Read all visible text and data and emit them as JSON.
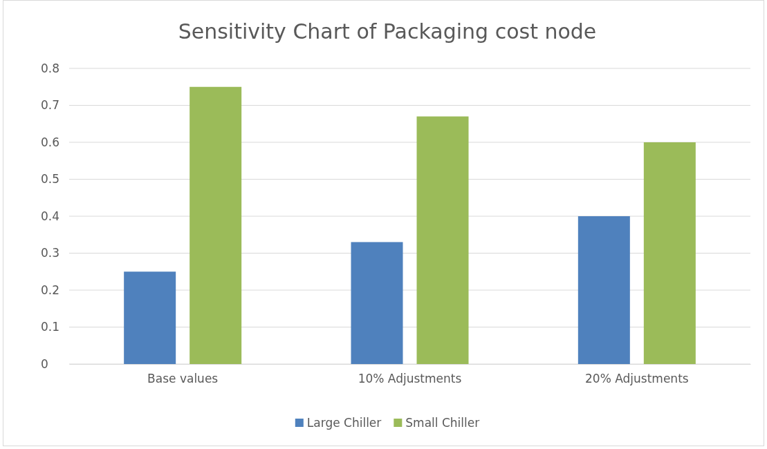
{
  "chart_data": {
    "type": "bar",
    "title": "Sensitivity Chart of Packaging cost node",
    "categories": [
      "Base values",
      "10% Adjustments",
      "20% Adjustments"
    ],
    "series": [
      {
        "name": "Large Chiller",
        "color": "#4f81bd",
        "values": [
          0.25,
          0.33,
          0.4
        ]
      },
      {
        "name": "Small Chiller",
        "color": "#9bbb59",
        "values": [
          0.75,
          0.67,
          0.6
        ]
      }
    ],
    "ylim": [
      0,
      0.8
    ],
    "yticks": [
      0,
      0.1,
      0.2,
      0.3,
      0.4,
      0.5,
      0.6,
      0.7,
      0.8
    ],
    "grid": "y",
    "legend": "bottom"
  }
}
